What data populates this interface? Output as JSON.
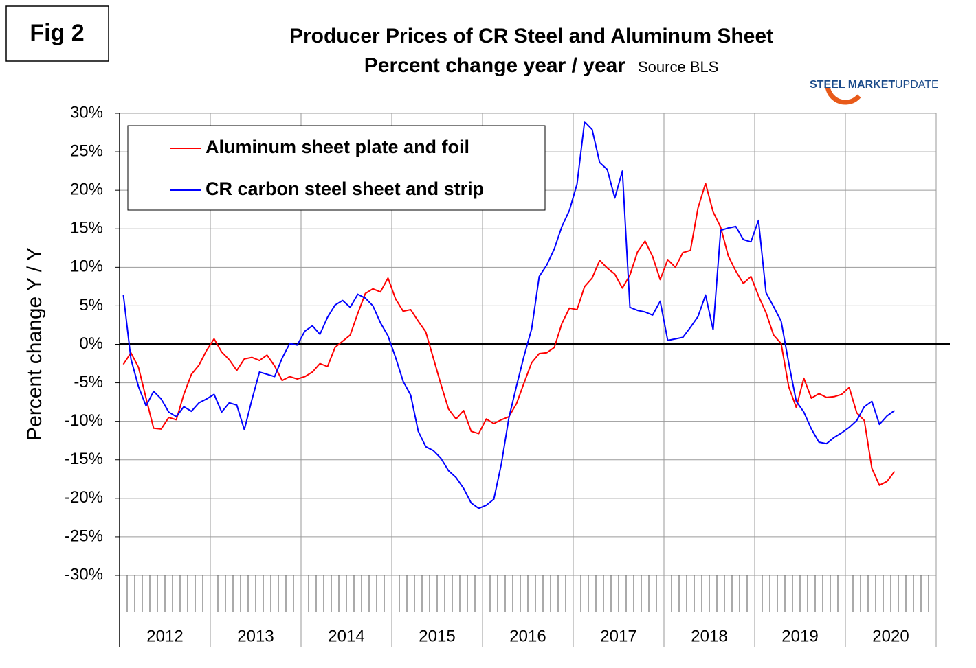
{
  "fig_label": "Fig 2",
  "logo": {
    "bold": "STEEL MARKET",
    "light": "UPDATE"
  },
  "chart_data": {
    "type": "line",
    "title": "Producer Prices of CR Steel and Aluminum Sheet",
    "subtitle": "Percent change year / year",
    "source": "Source BLS",
    "y_label": "Percent change Y / Y",
    "categories": [
      "2012",
      "2012",
      "2012",
      "2012",
      "2012",
      "2012",
      "2012",
      "2012",
      "2012",
      "2012",
      "2012",
      "2012",
      "2013",
      "2013",
      "2013",
      "2013",
      "2013",
      "2013",
      "2013",
      "2013",
      "2013",
      "2013",
      "2013",
      "2013",
      "2014",
      "2014",
      "2014",
      "2014",
      "2014",
      "2014",
      "2014",
      "2014",
      "2014",
      "2014",
      "2014",
      "2014",
      "2015",
      "2015",
      "2015",
      "2015",
      "2015",
      "2015",
      "2015",
      "2015",
      "2015",
      "2015",
      "2015",
      "2015",
      "2016",
      "2016",
      "2016",
      "2016",
      "2016",
      "2016",
      "2016",
      "2016",
      "2016",
      "2016",
      "2016",
      "2016",
      "2017",
      "2017",
      "2017",
      "2017",
      "2017",
      "2017",
      "2017",
      "2017",
      "2017",
      "2017",
      "2017",
      "2017",
      "2018",
      "2018",
      "2018",
      "2018",
      "2018",
      "2018",
      "2018",
      "2018",
      "2018",
      "2018",
      "2018",
      "2018",
      "2019",
      "2019",
      "2019",
      "2019",
      "2019",
      "2019",
      "2019",
      "2019",
      "2019",
      "2019",
      "2019",
      "2019",
      "2020",
      "2020",
      "2020",
      "2020",
      "2020",
      "2020",
      "2020"
    ],
    "series": [
      {
        "name": "Aluminum sheet plate and foil",
        "color": "#ff0000",
        "values": [
          -2.6,
          -1.1,
          -3,
          -7,
          -10.9,
          -11,
          -9.5,
          -9.8,
          -6.5,
          -3.9,
          -2.7,
          -0.8,
          0.7,
          -1,
          -2,
          -3.4,
          -1.9,
          -1.7,
          -2.1,
          -1.4,
          -2.8,
          -4.7,
          -4.2,
          -4.5,
          -4.2,
          -3.6,
          -2.5,
          -2.9,
          -0.4,
          0.4,
          1.2,
          4,
          6.6,
          7.2,
          6.8,
          8.6,
          5.9,
          4.3,
          4.5,
          3,
          1.6,
          -1.8,
          -5.2,
          -8.4,
          -9.7,
          -8.6,
          -11.3,
          -11.6,
          -9.7,
          -10.3,
          -9.8,
          -9.4,
          -7.7,
          -5,
          -2.4,
          -1.2,
          -1.1,
          -0.4,
          2.7,
          4.7,
          4.5,
          7.5,
          8.6,
          10.9,
          9.9,
          9.1,
          7.3,
          9,
          12,
          13.4,
          11.4,
          8.4,
          11,
          10,
          11.9,
          12.2,
          17.7,
          20.9,
          17.2,
          15.2,
          11.5,
          9.5,
          7.9,
          8.8,
          6.3,
          4.1,
          1.2,
          0.1,
          -5.5,
          -8.2,
          -4.4,
          -7,
          -6.4,
          -6.9,
          -6.8,
          -6.5,
          -5.6,
          -8.9,
          -9.9,
          -16.1,
          -18.3,
          -17.8,
          -16.5
        ]
      },
      {
        "name": "CR carbon steel sheet and strip",
        "color": "#0000ff",
        "values": [
          6.4,
          -1.9,
          -5.5,
          -8,
          -6.1,
          -7.1,
          -8.8,
          -9.4,
          -8.1,
          -8.7,
          -7.6,
          -7.1,
          -6.5,
          -8.8,
          -7.6,
          -7.9,
          -11.1,
          -7.2,
          -3.6,
          -3.9,
          -4.2,
          -1.8,
          0.1,
          -0.1,
          1.7,
          2.4,
          1.3,
          3.5,
          5.1,
          5.7,
          4.8,
          6.5,
          6,
          5,
          2.8,
          1.1,
          -1.7,
          -4.8,
          -6.6,
          -11.3,
          -13.3,
          -13.8,
          -14.8,
          -16.4,
          -17.3,
          -18.7,
          -20.6,
          -21.3,
          -20.9,
          -20.1,
          -15.5,
          -9.5,
          -5.4,
          -1.5,
          2,
          8.8,
          10.3,
          12.4,
          15.3,
          17.4,
          20.8,
          28.9,
          27.9,
          23.6,
          22.7,
          19,
          22.5,
          4.8,
          4.4,
          4.2,
          3.8,
          5.6,
          0.5,
          0.7,
          0.9,
          2.2,
          3.6,
          6.4,
          1.9,
          14.8,
          15.1,
          15.3,
          13.6,
          13.3,
          16.1,
          6.7,
          4.9,
          3,
          -2.4,
          -7.4,
          -8.8,
          -11,
          -12.7,
          -12.9,
          -12.1,
          -11.5,
          -10.8,
          -9.9,
          -8.1,
          -7.4,
          -10.4,
          -9.3,
          -8.6
        ]
      }
    ],
    "ylim": [
      -30,
      30
    ],
    "yticks": [
      {
        "value": -30,
        "label": "-30%"
      },
      {
        "value": -25,
        "label": "-25%"
      },
      {
        "value": -20,
        "label": "-20%"
      },
      {
        "value": -15,
        "label": "-15%"
      },
      {
        "value": -10,
        "label": "-10%"
      },
      {
        "value": -5,
        "label": "-5%"
      },
      {
        "value": 0,
        "label": "0%"
      },
      {
        "value": 5,
        "label": "5%"
      },
      {
        "value": 10,
        "label": "10%"
      },
      {
        "value": 15,
        "label": "15%"
      },
      {
        "value": 20,
        "label": "20%"
      },
      {
        "value": 25,
        "label": "25%"
      },
      {
        "value": 30,
        "label": "30%"
      }
    ],
    "grid": true,
    "legend": "upper left"
  }
}
